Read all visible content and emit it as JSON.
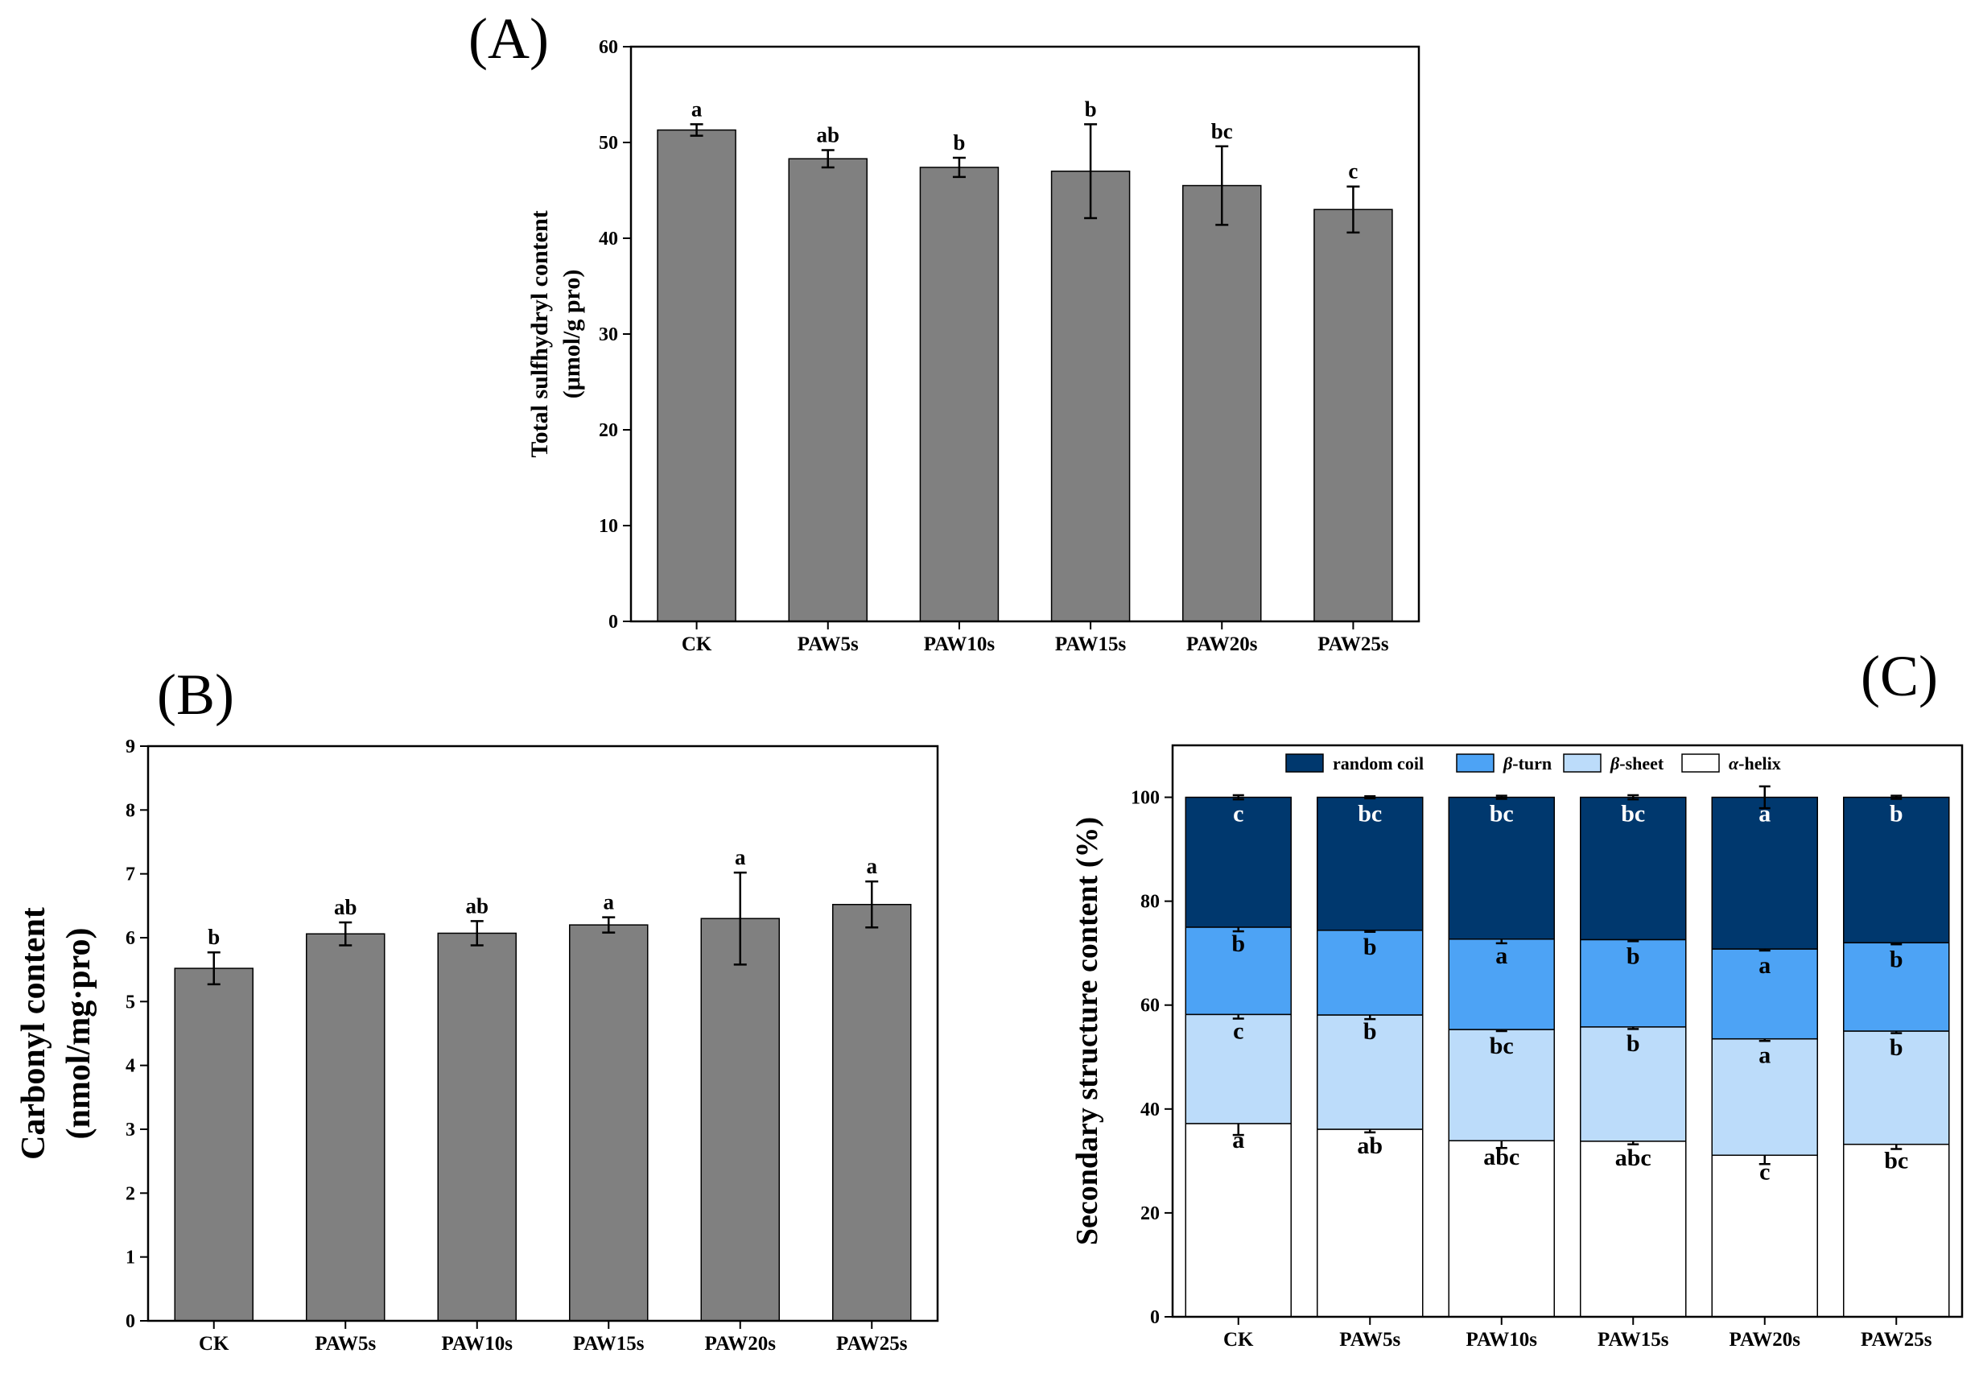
{
  "chart_data": [
    {
      "panel": "(A)",
      "type": "bar",
      "categories": [
        "CK",
        "PAW5s",
        "PAW10s",
        "PAW15s",
        "PAW20s",
        "PAW25s"
      ],
      "values": [
        51.3,
        48.3,
        47.4,
        47.0,
        45.5,
        43.0
      ],
      "errors": [
        0.6,
        0.9,
        1.0,
        4.9,
        4.1,
        2.4
      ],
      "significance": [
        "a",
        "ab",
        "b",
        "b",
        "bc",
        "c"
      ],
      "ylabel_line1": "Total sulfhydryl content",
      "ylabel_line2": "(μmol/g pro)",
      "ylim": [
        0,
        60
      ],
      "yticks": [
        0,
        10,
        20,
        30,
        40,
        50,
        60
      ],
      "bar_color": "#808080"
    },
    {
      "panel": "(B)",
      "type": "bar",
      "categories": [
        "CK",
        "PAW5s",
        "PAW10s",
        "PAW15s",
        "PAW20s",
        "PAW25s"
      ],
      "values": [
        5.52,
        6.06,
        6.07,
        6.2,
        6.3,
        6.52
      ],
      "errors": [
        0.25,
        0.18,
        0.19,
        0.12,
        0.72,
        0.36
      ],
      "significance": [
        "b",
        "ab",
        "ab",
        "a",
        "a",
        "a"
      ],
      "ylabel_line1": "Carbonyl content",
      "ylabel_line2": "(nmol/mg·pro)",
      "ylim": [
        0,
        9
      ],
      "yticks": [
        0,
        1,
        2,
        3,
        4,
        5,
        6,
        7,
        8,
        9
      ],
      "bar_color": "#808080"
    },
    {
      "panel": "(C)",
      "type": "bar",
      "stacked": true,
      "categories": [
        "CK",
        "PAW5s",
        "PAW10s",
        "PAW15s",
        "PAW20s",
        "PAW25s"
      ],
      "series": [
        {
          "name": "α-helix",
          "prefix": "α",
          "suffix": "-helix",
          "color": "#ffffff",
          "label_color": "#000000",
          "values": [
            37.2,
            36.1,
            33.9,
            33.8,
            31.1,
            33.2
          ],
          "errors": [
            2.2,
            0.6,
            1.4,
            0.6,
            1.7,
            0.9
          ],
          "significance": [
            "a",
            "ab",
            "abc",
            "abc",
            "c",
            "bc"
          ]
        },
        {
          "name": "β-sheet",
          "prefix": "β",
          "suffix": "-sheet",
          "color": "#bcdcfa",
          "label_color": "#000000",
          "values": [
            21.0,
            22.0,
            21.4,
            22.0,
            22.4,
            21.8
          ],
          "errors": [
            0.8,
            0.8,
            0.3,
            0.4,
            0.4,
            0.4
          ],
          "significance": [
            "c",
            "b",
            "bc",
            "b",
            "a",
            "b"
          ]
        },
        {
          "name": "β-turn",
          "prefix": "β",
          "suffix": "-turn",
          "color": "#4da3f5",
          "label_color": "#000000",
          "values": [
            16.8,
            16.3,
            17.4,
            16.8,
            17.3,
            17.0
          ],
          "errors": [
            0.8,
            0.3,
            0.8,
            0.3,
            0.3,
            0.3
          ],
          "significance": [
            "b",
            "b",
            "a",
            "b",
            "a",
            "b"
          ]
        },
        {
          "name": "random coil",
          "prefix": "",
          "suffix": "random coil",
          "color": "#00386e",
          "label_color": "#ffffff",
          "values": [
            25.0,
            25.6,
            27.3,
            27.4,
            29.2,
            28.0
          ],
          "errors": [
            0.4,
            0.2,
            0.3,
            0.4,
            2.1,
            0.3
          ],
          "significance": [
            "c",
            "bc",
            "bc",
            "bc",
            "a",
            "b"
          ]
        }
      ],
      "legend_order": [
        "random coil",
        "β-turn",
        "β-sheet",
        "α-helix"
      ],
      "ylabel": "Secondary structure content (%)",
      "ylim": [
        0,
        110
      ],
      "yticks": [
        0,
        20,
        40,
        60,
        80,
        100
      ]
    }
  ]
}
